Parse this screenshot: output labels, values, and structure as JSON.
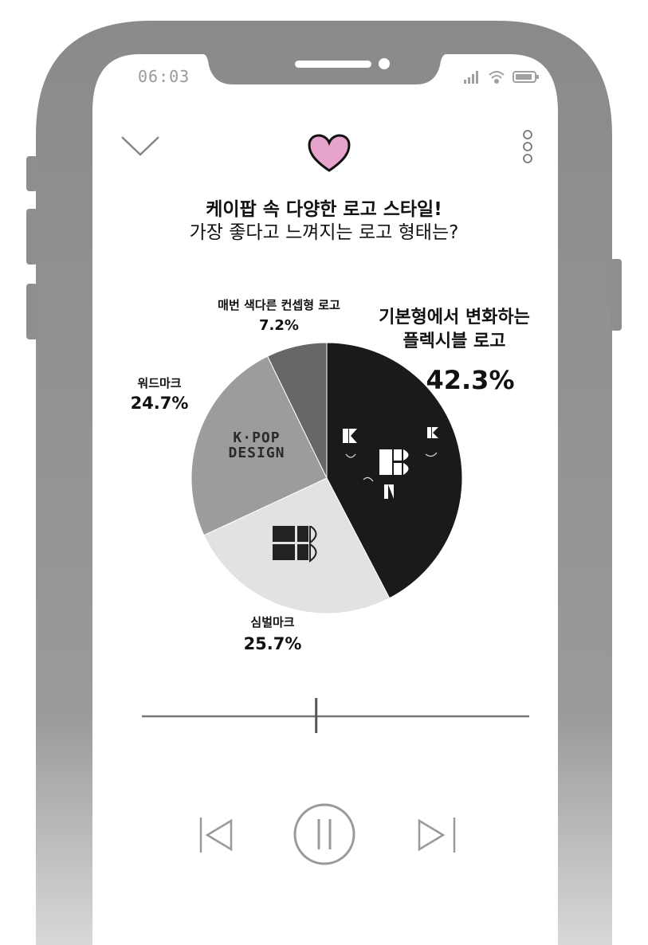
{
  "status_bar": {
    "time": "06:03",
    "icons": [
      "signal-icon",
      "wifi-icon",
      "battery-icon"
    ]
  },
  "header": {
    "icons": [
      "chevron-down-icon",
      "heart-icon",
      "more-vertical-icon"
    ]
  },
  "question": {
    "line1": "케이팝 속 다양한 로고 스타일!",
    "line2": "가장 좋다고 느껴지는 로고 형태는?"
  },
  "chart_data": {
    "type": "pie",
    "slices": [
      {
        "name": "기본형에서 변화하는 플렉시블 로고",
        "value": 42.3,
        "label": "42.3%",
        "color": "#1a1a1a"
      },
      {
        "name": "심벌마크",
        "value": 25.7,
        "label": "25.7%",
        "color": "#e2e2e2"
      },
      {
        "name": "워드마크",
        "value": 24.7,
        "label": "24.7%",
        "color": "#9c9c9c"
      },
      {
        "name": "매번 색다른 컨셉형 로고",
        "value": 7.2,
        "label": "7.2%",
        "color": "#666666"
      }
    ]
  },
  "labels": {
    "flexible_line1": "기본형에서 변화하는",
    "flexible_line2": "플렉시블 로고",
    "symbol": "심벌마크",
    "wordmark": "워드마크",
    "concept": "매번 색다른 컨셉형 로고",
    "wordmark_art_line1": "K·POP",
    "wordmark_art_line2": "DESIGN"
  },
  "player": {
    "progress": 0.45,
    "controls": [
      "previous-icon",
      "pause-icon",
      "next-icon"
    ]
  },
  "colors": {
    "heart": "#e6a3cc",
    "frame": "#8c8c8c",
    "text": "#111111"
  }
}
